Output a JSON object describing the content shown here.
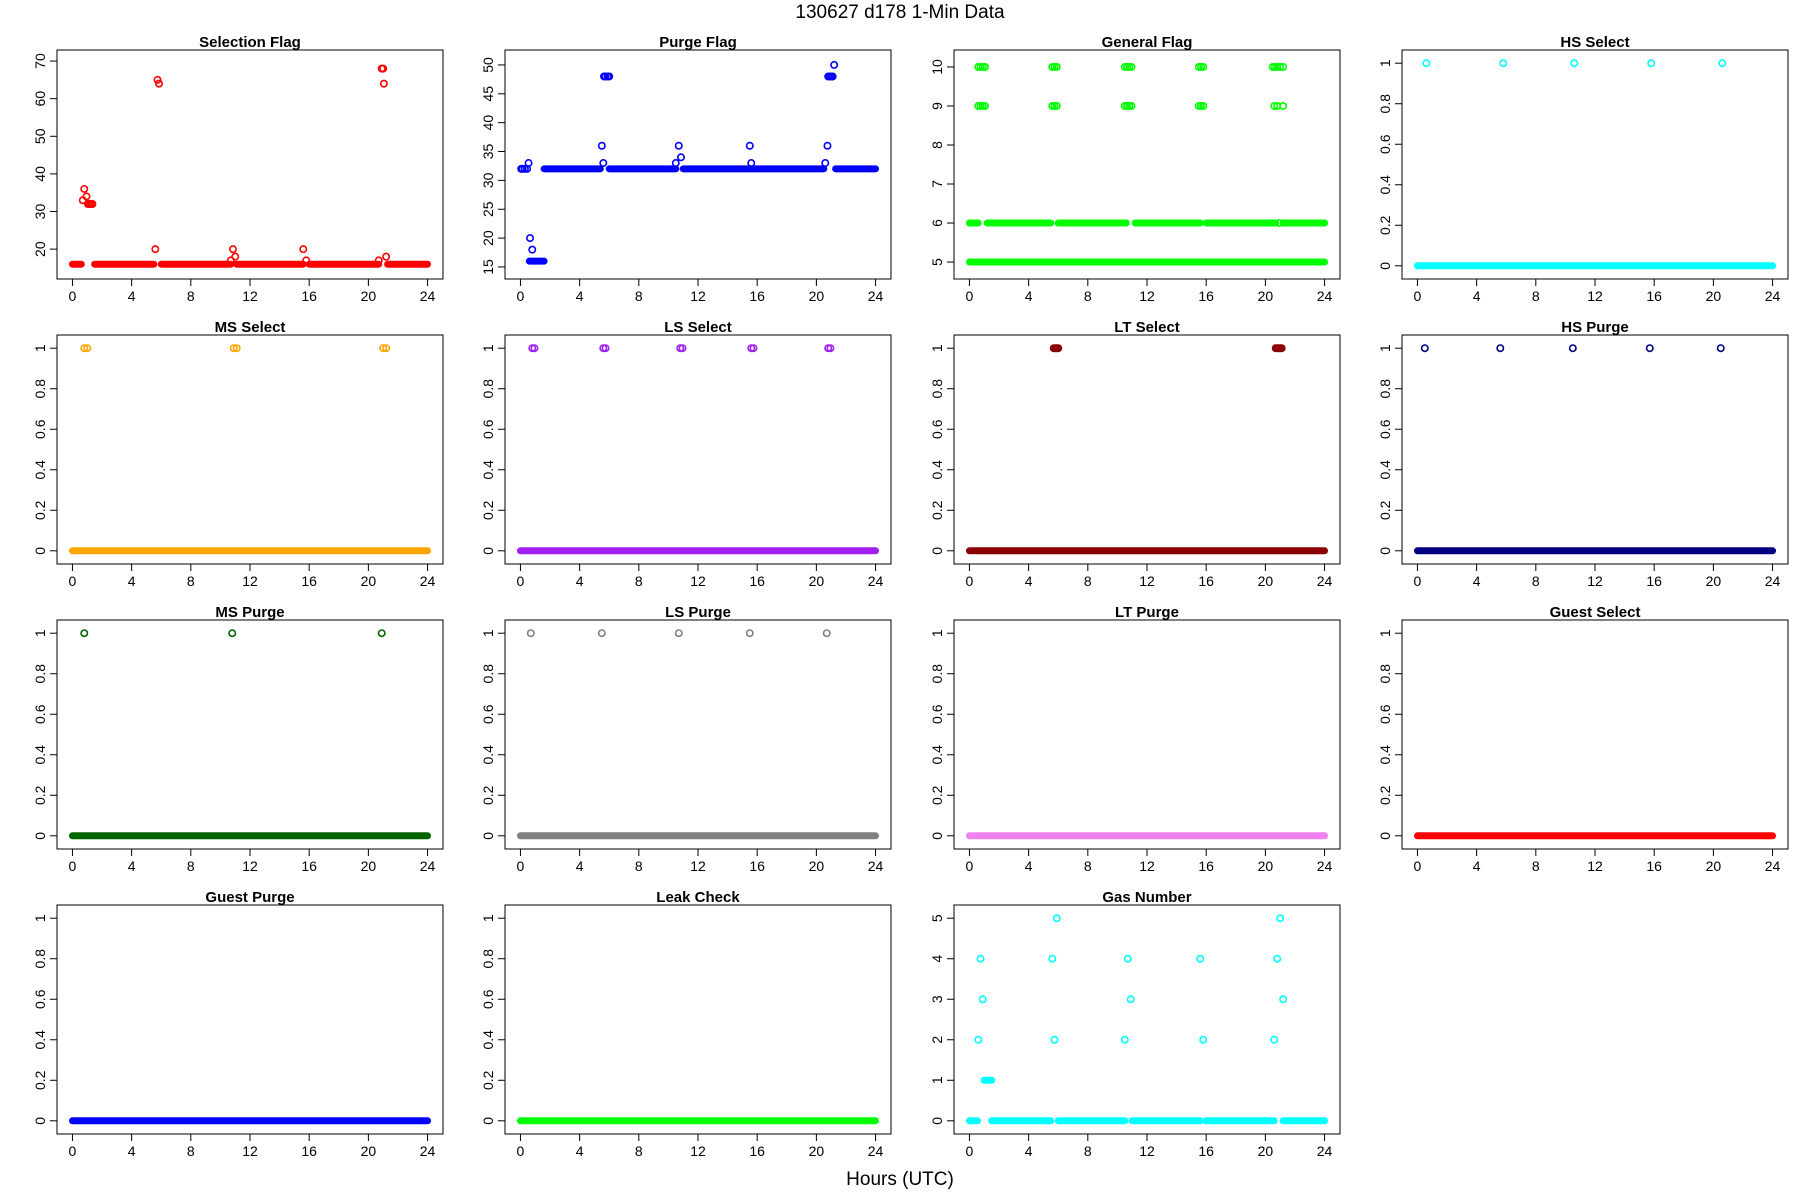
{
  "figure": {
    "title": "130627   d178   1-Min Data",
    "xlabel": "Hours (UTC)"
  },
  "chart_data": [
    {
      "type": "scatter",
      "title": "Selection Flag",
      "color": "#ff0000",
      "xlim": [
        0,
        24
      ],
      "ylim": [
        14.5,
        70.5
      ],
      "xticks": [
        0,
        4,
        8,
        12,
        16,
        20,
        24
      ],
      "yticks": [
        20,
        30,
        40,
        50,
        60,
        70
      ],
      "baselines": [
        {
          "y": 16,
          "x": [
            [
              0,
              0.6
            ],
            [
              1.5,
              5.5
            ],
            [
              6.0,
              10.7
            ],
            [
              11.1,
              15.6
            ],
            [
              16.0,
              20.7
            ],
            [
              21.3,
              24
            ]
          ]
        }
      ],
      "points": [
        [
          0.7,
          33
        ],
        [
          0.8,
          36
        ],
        [
          0.95,
          34
        ],
        [
          1.05,
          32
        ],
        [
          1.15,
          32
        ],
        [
          1.25,
          32
        ],
        [
          1.35,
          32
        ],
        [
          5.6,
          20
        ],
        [
          5.75,
          65
        ],
        [
          5.85,
          64
        ],
        [
          10.7,
          17
        ],
        [
          10.85,
          20
        ],
        [
          11.0,
          18
        ],
        [
          15.6,
          20
        ],
        [
          15.8,
          17
        ],
        [
          20.7,
          17
        ],
        [
          20.9,
          68
        ],
        [
          21.0,
          68
        ],
        [
          21.05,
          64
        ],
        [
          21.2,
          18
        ]
      ]
    },
    {
      "type": "scatter",
      "title": "Purge Flag",
      "color": "#0000ff",
      "xlim": [
        0,
        24
      ],
      "ylim": [
        14.5,
        51
      ],
      "xticks": [
        0,
        4,
        8,
        12,
        16,
        20,
        24
      ],
      "yticks": [
        15,
        20,
        25,
        30,
        35,
        40,
        45,
        50
      ],
      "baselines": [
        {
          "y": 32,
          "x": [
            [
              1.6,
              5.4
            ],
            [
              6.0,
              10.5
            ],
            [
              11.0,
              20.5
            ],
            [
              21.3,
              24
            ]
          ]
        },
        {
          "y": 16,
          "x": [
            [
              0.6,
              1.6
            ]
          ]
        }
      ],
      "points": [
        [
          0.05,
          32
        ],
        [
          0.15,
          32
        ],
        [
          0.3,
          32
        ],
        [
          0.45,
          32
        ],
        [
          0.55,
          33
        ],
        [
          0.65,
          20
        ],
        [
          0.8,
          18
        ],
        [
          5.5,
          36
        ],
        [
          5.6,
          33
        ],
        [
          5.65,
          48
        ],
        [
          5.75,
          48
        ],
        [
          5.9,
          48
        ],
        [
          6.0,
          48
        ],
        [
          10.5,
          33
        ],
        [
          10.7,
          36
        ],
        [
          10.85,
          34
        ],
        [
          15.5,
          36
        ],
        [
          15.6,
          33
        ],
        [
          20.6,
          33
        ],
        [
          20.75,
          36
        ],
        [
          20.8,
          48
        ],
        [
          20.9,
          48
        ],
        [
          21.0,
          48
        ],
        [
          21.1,
          48
        ],
        [
          21.2,
          50
        ]
      ]
    },
    {
      "type": "scatter",
      "title": "General Flag",
      "color": "#00ff00",
      "xlim": [
        0,
        24
      ],
      "ylim": [
        4.8,
        10.2
      ],
      "xticks": [
        0,
        4,
        8,
        12,
        16,
        20,
        24
      ],
      "yticks": [
        5,
        6,
        7,
        8,
        9,
        10
      ],
      "baselines": [
        {
          "y": 5,
          "x": [
            [
              0,
              24
            ]
          ]
        },
        {
          "y": 6,
          "x": [
            [
              0,
              0.6
            ],
            [
              1.2,
              5.5
            ],
            [
              6.0,
              10.6
            ],
            [
              11.2,
              15.6
            ],
            [
              16.0,
              20.7
            ],
            [
              21.2,
              24
            ]
          ]
        }
      ],
      "points": [
        [
          0.6,
          10
        ],
        [
          0.75,
          10
        ],
        [
          0.9,
          10
        ],
        [
          1.05,
          10
        ],
        [
          0.6,
          9
        ],
        [
          0.75,
          9
        ],
        [
          0.9,
          9
        ],
        [
          1.05,
          9
        ],
        [
          5.6,
          10
        ],
        [
          5.75,
          10
        ],
        [
          5.9,
          10
        ],
        [
          5.6,
          9
        ],
        [
          5.75,
          9
        ],
        [
          5.9,
          9
        ],
        [
          10.5,
          10
        ],
        [
          10.65,
          10
        ],
        [
          10.8,
          10
        ],
        [
          10.95,
          10
        ],
        [
          10.5,
          9
        ],
        [
          10.65,
          9
        ],
        [
          10.8,
          9
        ],
        [
          10.95,
          9
        ],
        [
          15.5,
          10
        ],
        [
          15.65,
          10
        ],
        [
          15.8,
          10
        ],
        [
          15.5,
          9
        ],
        [
          15.65,
          9
        ],
        [
          15.8,
          9
        ],
        [
          20.5,
          10
        ],
        [
          20.65,
          10
        ],
        [
          20.8,
          10
        ],
        [
          21.0,
          10
        ],
        [
          21.2,
          10
        ],
        [
          20.6,
          9
        ],
        [
          20.8,
          9
        ],
        [
          21.2,
          9
        ],
        [
          20.95,
          6
        ]
      ]
    },
    {
      "type": "scatter",
      "title": "HS Select",
      "color": "#00ffff",
      "xlim": [
        0,
        24
      ],
      "ylim": [
        -0.02,
        1.02
      ],
      "xticks": [
        0,
        4,
        8,
        12,
        16,
        20,
        24
      ],
      "yticks": [
        0,
        0.2,
        0.4,
        0.6,
        0.8,
        1
      ],
      "baselines": [
        {
          "y": 0,
          "x": [
            [
              0,
              24
            ]
          ]
        }
      ],
      "points": [
        [
          0.6,
          1
        ],
        [
          5.8,
          1
        ],
        [
          10.6,
          1
        ],
        [
          15.8,
          1
        ],
        [
          20.6,
          1
        ]
      ]
    },
    {
      "type": "scatter",
      "title": "MS Select",
      "color": "#ffa500",
      "xlim": [
        0,
        24
      ],
      "ylim": [
        -0.02,
        1.02
      ],
      "xticks": [
        0,
        4,
        8,
        12,
        16,
        20,
        24
      ],
      "yticks": [
        0,
        0.2,
        0.4,
        0.6,
        0.8,
        1
      ],
      "baselines": [
        {
          "y": 0,
          "x": [
            [
              0,
              24
            ]
          ]
        }
      ],
      "points": [
        [
          0.8,
          1
        ],
        [
          1.0,
          1
        ],
        [
          10.9,
          1
        ],
        [
          11.1,
          1
        ],
        [
          21.0,
          1
        ],
        [
          21.2,
          1
        ]
      ]
    },
    {
      "type": "scatter",
      "title": "LS Select",
      "color": "#a020f0",
      "xlim": [
        0,
        24
      ],
      "ylim": [
        -0.02,
        1.02
      ],
      "xticks": [
        0,
        4,
        8,
        12,
        16,
        20,
        24
      ],
      "yticks": [
        0,
        0.2,
        0.4,
        0.6,
        0.8,
        1
      ],
      "baselines": [
        {
          "y": 0,
          "x": [
            [
              0,
              24
            ]
          ]
        }
      ],
      "points": [
        [
          0.8,
          1
        ],
        [
          0.95,
          1
        ],
        [
          5.6,
          1
        ],
        [
          5.75,
          1
        ],
        [
          10.8,
          1
        ],
        [
          10.95,
          1
        ],
        [
          15.6,
          1
        ],
        [
          15.75,
          1
        ],
        [
          20.8,
          1
        ],
        [
          20.95,
          1
        ]
      ]
    },
    {
      "type": "scatter",
      "title": "LT Select",
      "color": "#8b0000",
      "xlim": [
        0,
        24
      ],
      "ylim": [
        -0.02,
        1.02
      ],
      "xticks": [
        0,
        4,
        8,
        12,
        16,
        20,
        24
      ],
      "yticks": [
        0,
        0.2,
        0.4,
        0.6,
        0.8,
        1
      ],
      "baselines": [
        {
          "y": 0,
          "x": [
            [
              0,
              24
            ]
          ]
        }
      ],
      "points": [
        [
          5.7,
          1
        ],
        [
          5.8,
          1
        ],
        [
          5.9,
          1
        ],
        [
          6.0,
          1
        ],
        [
          20.7,
          1
        ],
        [
          20.8,
          1
        ],
        [
          20.9,
          1
        ],
        [
          21.0,
          1
        ],
        [
          21.1,
          1
        ]
      ]
    },
    {
      "type": "scatter",
      "title": "HS Purge",
      "color": "#000080",
      "xlim": [
        0,
        24
      ],
      "ylim": [
        -0.02,
        1.02
      ],
      "xticks": [
        0,
        4,
        8,
        12,
        16,
        20,
        24
      ],
      "yticks": [
        0,
        0.2,
        0.4,
        0.6,
        0.8,
        1
      ],
      "baselines": [
        {
          "y": 0,
          "x": [
            [
              0,
              24
            ]
          ]
        }
      ],
      "points": [
        [
          0.5,
          1
        ],
        [
          5.6,
          1
        ],
        [
          10.5,
          1
        ],
        [
          15.7,
          1
        ],
        [
          20.5,
          1
        ]
      ]
    },
    {
      "type": "scatter",
      "title": "MS Purge",
      "color": "#006400",
      "xlim": [
        0,
        24
      ],
      "ylim": [
        -0.02,
        1.02
      ],
      "xticks": [
        0,
        4,
        8,
        12,
        16,
        20,
        24
      ],
      "yticks": [
        0,
        0.2,
        0.4,
        0.6,
        0.8,
        1
      ],
      "baselines": [
        {
          "y": 0,
          "x": [
            [
              0,
              24
            ]
          ]
        }
      ],
      "points": [
        [
          0.8,
          1
        ],
        [
          10.8,
          1
        ],
        [
          20.9,
          1
        ]
      ]
    },
    {
      "type": "scatter",
      "title": "LS Purge",
      "color": "#808080",
      "xlim": [
        0,
        24
      ],
      "ylim": [
        -0.02,
        1.02
      ],
      "xticks": [
        0,
        4,
        8,
        12,
        16,
        20,
        24
      ],
      "yticks": [
        0,
        0.2,
        0.4,
        0.6,
        0.8,
        1
      ],
      "baselines": [
        {
          "y": 0,
          "x": [
            [
              0,
              24
            ]
          ]
        }
      ],
      "points": [
        [
          0.7,
          1
        ],
        [
          5.5,
          1
        ],
        [
          10.7,
          1
        ],
        [
          15.5,
          1
        ],
        [
          20.7,
          1
        ]
      ]
    },
    {
      "type": "scatter",
      "title": "LT Purge",
      "color": "#ee82ee",
      "xlim": [
        0,
        24
      ],
      "ylim": [
        -0.02,
        1.02
      ],
      "xticks": [
        0,
        4,
        8,
        12,
        16,
        20,
        24
      ],
      "yticks": [
        0,
        0.2,
        0.4,
        0.6,
        0.8,
        1
      ],
      "baselines": [
        {
          "y": 0,
          "x": [
            [
              0,
              24
            ]
          ]
        }
      ],
      "points": []
    },
    {
      "type": "scatter",
      "title": "Guest Select",
      "color": "#ff0000",
      "xlim": [
        0,
        24
      ],
      "ylim": [
        -0.02,
        1.02
      ],
      "xticks": [
        0,
        4,
        8,
        12,
        16,
        20,
        24
      ],
      "yticks": [
        0,
        0.2,
        0.4,
        0.6,
        0.8,
        1
      ],
      "baselines": [
        {
          "y": 0,
          "x": [
            [
              0,
              24
            ]
          ]
        }
      ],
      "points": []
    },
    {
      "type": "scatter",
      "title": "Guest Purge",
      "color": "#0000ff",
      "xlim": [
        0,
        24
      ],
      "ylim": [
        -0.02,
        1.02
      ],
      "xticks": [
        0,
        4,
        8,
        12,
        16,
        20,
        24
      ],
      "yticks": [
        0,
        0.2,
        0.4,
        0.6,
        0.8,
        1
      ],
      "baselines": [
        {
          "y": 0,
          "x": [
            [
              0,
              24
            ]
          ]
        }
      ],
      "points": []
    },
    {
      "type": "scatter",
      "title": "Leak Check",
      "color": "#00ff00",
      "xlim": [
        0,
        24
      ],
      "ylim": [
        -0.02,
        1.02
      ],
      "xticks": [
        0,
        4,
        8,
        12,
        16,
        20,
        24
      ],
      "yticks": [
        0,
        0.2,
        0.4,
        0.6,
        0.8,
        1
      ],
      "baselines": [
        {
          "y": 0,
          "x": [
            [
              0,
              24
            ]
          ]
        }
      ],
      "points": []
    },
    {
      "type": "scatter",
      "title": "Gas Number",
      "color": "#00ffff",
      "xlim": [
        0,
        24
      ],
      "ylim": [
        -0.1,
        5.1
      ],
      "xticks": [
        0,
        4,
        8,
        12,
        16,
        20,
        24
      ],
      "yticks": [
        0,
        1,
        2,
        3,
        4,
        5
      ],
      "baselines": [
        {
          "y": 0,
          "x": [
            [
              0,
              0.55
            ],
            [
              1.5,
              5.5
            ],
            [
              6.0,
              10.5
            ],
            [
              11.0,
              15.6
            ],
            [
              16.0,
              20.6
            ],
            [
              21.2,
              24
            ]
          ]
        },
        {
          "y": 1,
          "x": [
            [
              1.0,
              1.5
            ]
          ]
        }
      ],
      "points": [
        [
          0.6,
          2
        ],
        [
          0.75,
          4
        ],
        [
          0.9,
          3
        ],
        [
          5.6,
          4
        ],
        [
          5.75,
          2
        ],
        [
          5.9,
          5
        ],
        [
          10.5,
          2
        ],
        [
          10.7,
          4
        ],
        [
          10.9,
          3
        ],
        [
          15.6,
          4
        ],
        [
          15.8,
          2
        ],
        [
          20.6,
          2
        ],
        [
          20.8,
          4
        ],
        [
          21.0,
          5
        ],
        [
          21.2,
          3
        ]
      ]
    }
  ]
}
